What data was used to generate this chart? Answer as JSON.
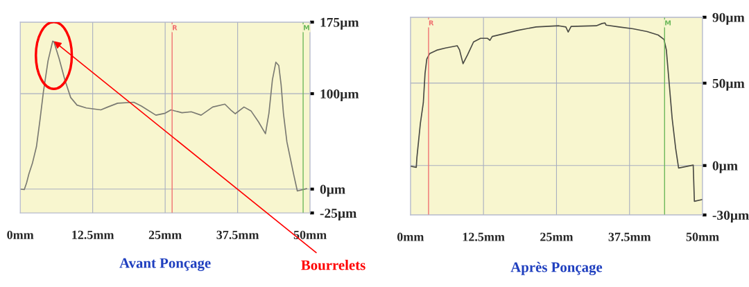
{
  "chart_data": [
    {
      "type": "line",
      "title": "Avant Ponçage",
      "relative": false,
      "series": [
        {
          "color": "#7a7a72",
          "x": [
            0,
            0.7,
            1.1,
            1.5,
            2.1,
            2.8,
            3.4,
            4.0,
            4.8,
            5.6,
            5.8,
            6.7,
            7.7,
            8.7,
            9.8,
            11.4,
            13.9,
            15.1,
            16.8,
            19.6,
            20.9,
            23.4,
            25,
            26,
            27.9,
            29.5,
            31.2,
            33.2,
            35.3,
            36.3,
            37.1,
            38.6,
            39.8,
            41.1,
            42.3,
            42.9,
            43.5,
            44.1,
            44.6,
            45,
            45.4,
            46,
            46.6,
            47.2,
            47.8,
            49.4
          ],
          "values": [
            0,
            -0.5,
            6.5,
            16,
            27,
            44.5,
            72,
            102,
            134.5,
            155,
            154.5,
            137,
            114.5,
            96,
            88,
            85,
            83,
            86,
            90,
            91,
            87,
            77.5,
            79.5,
            83,
            80,
            81,
            77.5,
            86,
            89,
            83,
            79,
            86,
            82,
            70.5,
            58,
            79.5,
            114.5,
            133,
            129.5,
            109.5,
            79.5,
            49.5,
            32,
            14.5,
            -2,
            0.5
          ]
        }
      ],
      "xlim": [
        0,
        50
      ],
      "ylim": [
        -25,
        175
      ],
      "xticks": [
        {
          "value": 0,
          "label": "0mm"
        },
        {
          "value": 12.5,
          "label": "12.5mm"
        },
        {
          "value": 25,
          "label": "25mm"
        },
        {
          "value": 37.5,
          "label": "37.5mm"
        },
        {
          "value": 50,
          "label": "50mm"
        }
      ],
      "yticks": [
        {
          "value": -25,
          "label": "-25µm"
        },
        {
          "value": 0,
          "label": "0µm"
        },
        {
          "value": 100,
          "label": "100µm"
        },
        {
          "value": 175,
          "label": "175µm"
        }
      ],
      "grid": true,
      "legend": false,
      "ref_lines": [
        {
          "axis": "x",
          "value": 26.2,
          "label": "R",
          "color": "#f07070"
        },
        {
          "axis": "x",
          "value": 48.8,
          "label": "M",
          "color": "#6cb85a"
        }
      ],
      "annotations": [
        {
          "text": "Bourrelets",
          "x": 5.8,
          "y": 155
        }
      ]
    },
    {
      "type": "line",
      "title": "Après Ponçage",
      "relative": false,
      "series": [
        {
          "color": "#4a4a44",
          "x": [
            0,
            1,
            1.1,
            1.7,
            2.2,
            2.5,
            2.8,
            3.3,
            4.5,
            6,
            8,
            8.4,
            9,
            9.8,
            10.8,
            12,
            13.2,
            13.6,
            14,
            16,
            18.3,
            21.5,
            25.4,
            26.6,
            27,
            27.5,
            31.8,
            32.8,
            33.3,
            33.5,
            35.7,
            38.1,
            40.5,
            42.4,
            43.4,
            43.8,
            44.2,
            44.8,
            45.4,
            45.9,
            48.4,
            48.6,
            50
          ],
          "values": [
            -0.4,
            -1.1,
            4.7,
            25.6,
            38,
            56,
            64.6,
            68,
            70,
            71.3,
            72.7,
            70.2,
            61.8,
            67.4,
            75,
            77.2,
            77.2,
            76,
            78.3,
            80,
            82,
            84.1,
            84.8,
            84.1,
            81,
            84.4,
            84.8,
            86.2,
            86.5,
            85.2,
            84.1,
            83,
            81.3,
            79.2,
            76.5,
            70.2,
            53.5,
            28.4,
            10.3,
            -1.5,
            0.3,
            -21.7,
            -20.6
          ]
        }
      ],
      "xlim": [
        0,
        50
      ],
      "ylim": [
        -30,
        90
      ],
      "xticks": [
        {
          "value": 0,
          "label": "0mm"
        },
        {
          "value": 12.5,
          "label": "12.5mm"
        },
        {
          "value": 25,
          "label": "25mm"
        },
        {
          "value": 37.5,
          "label": "37.5mm"
        },
        {
          "value": 50,
          "label": "50mm"
        }
      ],
      "yticks": [
        {
          "value": -30,
          "label": "-30µm"
        },
        {
          "value": 0,
          "label": "0µm"
        },
        {
          "value": 50,
          "label": "50µm"
        },
        {
          "value": 90,
          "label": "90µm"
        }
      ],
      "grid": true,
      "legend": false,
      "ref_lines": [
        {
          "axis": "x",
          "value": 3.1,
          "label": "R",
          "color": "#f07070"
        },
        {
          "axis": "x",
          "value": 43.5,
          "label": "M",
          "color": "#6cb85a"
        }
      ]
    }
  ]
}
